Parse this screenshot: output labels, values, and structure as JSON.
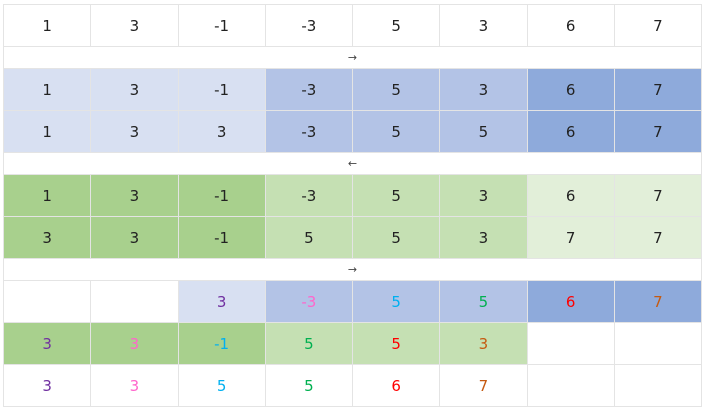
{
  "colors": {
    "blue1": "#d8e0f2",
    "blue2": "#b3c3e6",
    "blue3": "#8eaadb",
    "green1": "#a8d08d",
    "green2": "#c5e0b3",
    "green3": "#e2efd9",
    "white": "#ffffff",
    "default_text": "#222222"
  },
  "rows": [
    {
      "type": "cells",
      "cells": [
        {
          "v": "1"
        },
        {
          "v": "3"
        },
        {
          "v": "-1"
        },
        {
          "v": "-3"
        },
        {
          "v": "5"
        },
        {
          "v": "3"
        },
        {
          "v": "6"
        },
        {
          "v": "7"
        }
      ]
    },
    {
      "type": "arrow",
      "symbol": "→"
    },
    {
      "type": "cells",
      "cells": [
        {
          "v": "1",
          "bg": "blue1"
        },
        {
          "v": "3",
          "bg": "blue1"
        },
        {
          "v": "-1",
          "bg": "blue1"
        },
        {
          "v": "-3",
          "bg": "blue2"
        },
        {
          "v": "5",
          "bg": "blue2"
        },
        {
          "v": "3",
          "bg": "blue2"
        },
        {
          "v": "6",
          "bg": "blue3"
        },
        {
          "v": "7",
          "bg": "blue3"
        }
      ]
    },
    {
      "type": "cells",
      "cells": [
        {
          "v": "1",
          "bg": "blue1"
        },
        {
          "v": "3",
          "bg": "blue1"
        },
        {
          "v": "3",
          "bg": "blue1"
        },
        {
          "v": "-3",
          "bg": "blue2"
        },
        {
          "v": "5",
          "bg": "blue2"
        },
        {
          "v": "5",
          "bg": "blue2"
        },
        {
          "v": "6",
          "bg": "blue3"
        },
        {
          "v": "7",
          "bg": "blue3"
        }
      ]
    },
    {
      "type": "arrow",
      "symbol": "←"
    },
    {
      "type": "cells",
      "cells": [
        {
          "v": "1",
          "bg": "green1"
        },
        {
          "v": "3",
          "bg": "green1"
        },
        {
          "v": "-1",
          "bg": "green1"
        },
        {
          "v": "-3",
          "bg": "green2"
        },
        {
          "v": "5",
          "bg": "green2"
        },
        {
          "v": "3",
          "bg": "green2"
        },
        {
          "v": "6",
          "bg": "green3"
        },
        {
          "v": "7",
          "bg": "green3"
        }
      ]
    },
    {
      "type": "cells",
      "cells": [
        {
          "v": "3",
          "bg": "green1"
        },
        {
          "v": "3",
          "bg": "green1"
        },
        {
          "v": "-1",
          "bg": "green1"
        },
        {
          "v": "5",
          "bg": "green2"
        },
        {
          "v": "5",
          "bg": "green2"
        },
        {
          "v": "3",
          "bg": "green2"
        },
        {
          "v": "7",
          "bg": "green3"
        },
        {
          "v": "7",
          "bg": "green3"
        }
      ]
    },
    {
      "type": "arrow",
      "symbol": "→"
    },
    {
      "type": "cells",
      "cells": [
        {
          "v": ""
        },
        {
          "v": ""
        },
        {
          "v": "3",
          "bg": "blue1",
          "color": "#7030a0"
        },
        {
          "v": "-3",
          "bg": "blue2",
          "color": "#ff66cc"
        },
        {
          "v": "5",
          "bg": "blue2",
          "color": "#00b0f0"
        },
        {
          "v": "5",
          "bg": "blue2",
          "color": "#00b050"
        },
        {
          "v": "6",
          "bg": "blue3",
          "color": "#ff0000"
        },
        {
          "v": "7",
          "bg": "blue3",
          "color": "#c55a11"
        }
      ]
    },
    {
      "type": "cells",
      "cells": [
        {
          "v": "3",
          "bg": "green1",
          "color": "#7030a0"
        },
        {
          "v": "3",
          "bg": "green1",
          "color": "#ff66cc"
        },
        {
          "v": "-1",
          "bg": "green1",
          "color": "#00b0f0"
        },
        {
          "v": "5",
          "bg": "green2",
          "color": "#00b050"
        },
        {
          "v": "5",
          "bg": "green2",
          "color": "#ff0000"
        },
        {
          "v": "3",
          "bg": "green2",
          "color": "#c55a11"
        },
        {
          "v": ""
        },
        {
          "v": ""
        }
      ]
    },
    {
      "type": "cells",
      "cells": [
        {
          "v": "3",
          "color": "#7030a0"
        },
        {
          "v": "3",
          "color": "#ff66cc"
        },
        {
          "v": "5",
          "color": "#00b0f0"
        },
        {
          "v": "5",
          "color": "#00b050"
        },
        {
          "v": "6",
          "color": "#ff0000"
        },
        {
          "v": "7",
          "color": "#c55a11"
        },
        {
          "v": ""
        },
        {
          "v": ""
        }
      ]
    }
  ]
}
